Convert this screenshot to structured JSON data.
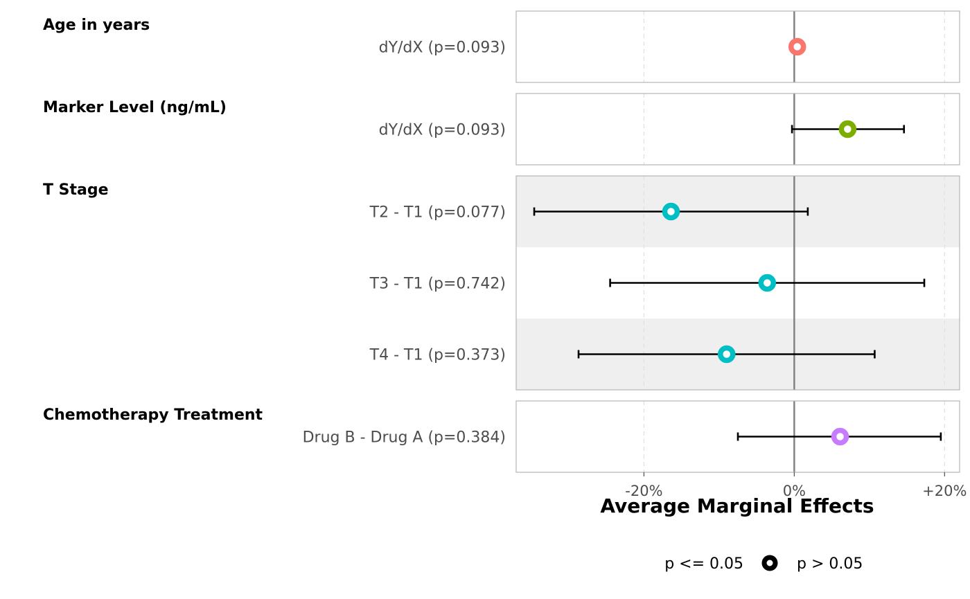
{
  "chart_data": {
    "type": "forest",
    "xlabel": "Average Marginal Effects",
    "xlim": [
      -37,
      22
    ],
    "x_ticks": [
      -20,
      0,
      20
    ],
    "x_tick_labels": [
      "-20%",
      "0%",
      "+20%"
    ],
    "reference_line": 0,
    "groups": [
      {
        "name": "Age in years",
        "color": "#F8766D",
        "rows": [
          {
            "label": "dY/dX (p=0.093)",
            "estimate": 0.4,
            "ci_low": 0.1,
            "ci_high": 0.7
          }
        ]
      },
      {
        "name": "Marker Level (ng/mL)",
        "color": "#7CAE00",
        "rows": [
          {
            "label": "dY/dX (p=0.093)",
            "estimate": 7.1,
            "ci_low": -0.3,
            "ci_high": 14.6
          }
        ]
      },
      {
        "name": "T Stage",
        "color": "#00BFC4",
        "rows": [
          {
            "label": "T2 - T1 (p=0.077)",
            "estimate": -16.4,
            "ci_low": -34.6,
            "ci_high": 1.8
          },
          {
            "label": "T3 - T1 (p=0.742)",
            "estimate": -3.6,
            "ci_low": -24.5,
            "ci_high": 17.3
          },
          {
            "label": "T4 - T1 (p=0.373)",
            "estimate": -9.0,
            "ci_low": -28.7,
            "ci_high": 10.7
          }
        ]
      },
      {
        "name": "Chemotherapy Treatment",
        "color": "#C77CFF",
        "rows": [
          {
            "label": "Drug B - Drug A (p=0.384)",
            "estimate": 6.1,
            "ci_low": -7.5,
            "ci_high": 19.5
          }
        ]
      }
    ],
    "legend": {
      "position": "bottom",
      "items": [
        {
          "label": "p <= 0.05",
          "marker": "filled-circle"
        },
        {
          "label": "p > 0.05",
          "marker": "hollow-circle"
        }
      ]
    }
  }
}
